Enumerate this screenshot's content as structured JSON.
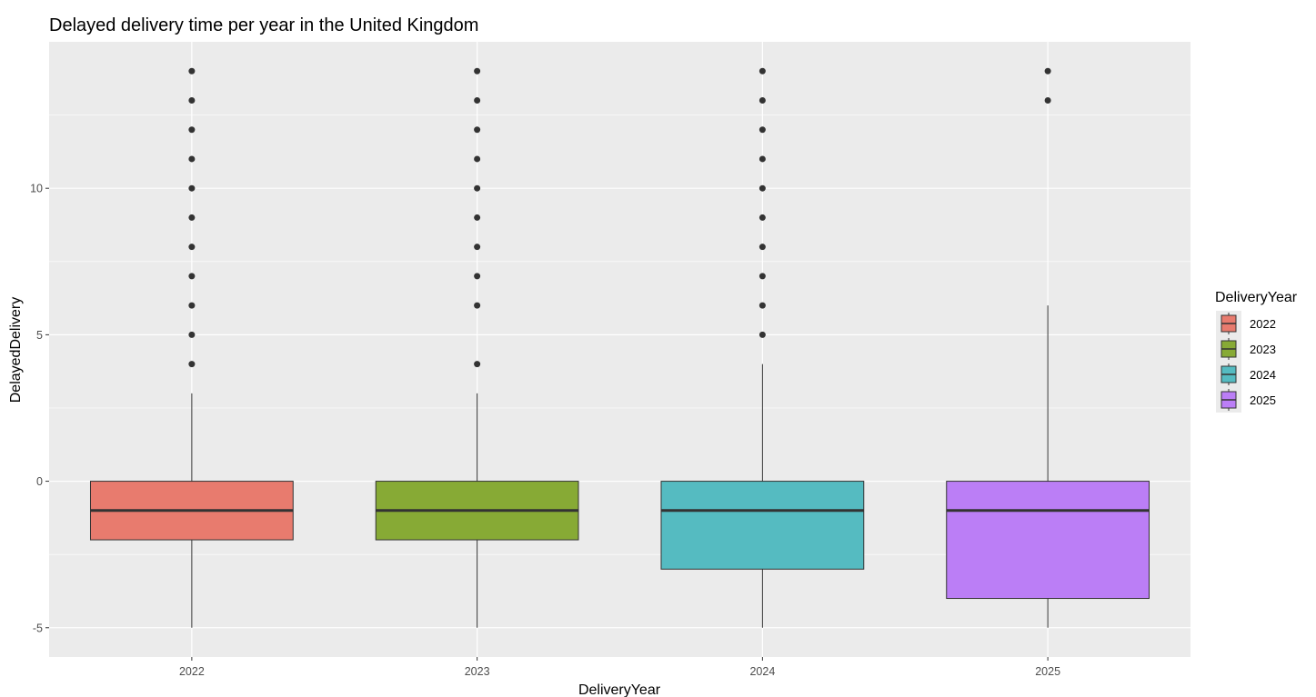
{
  "chart_data": {
    "type": "box",
    "title": "Delayed delivery time per year in the United Kingdom",
    "xlabel": "DeliveryYear",
    "ylabel": "DelayedDelivery",
    "ylim": [
      -6,
      15
    ],
    "y_ticks": [
      -5,
      0,
      5,
      10
    ],
    "y_tick_labels": [
      "-5",
      "0",
      "5",
      "10"
    ],
    "grid": true,
    "legend": {
      "title": "DeliveryYear",
      "position": "right",
      "entries": [
        "2022",
        "2023",
        "2024",
        "2025"
      ]
    },
    "categories": [
      "2022",
      "2023",
      "2024",
      "2025"
    ],
    "colors": [
      "#e87b6e",
      "#87aa35",
      "#55bbc1",
      "#bb7ef6"
    ],
    "boxes": [
      {
        "category": "2022",
        "whisker_low": -5,
        "q1": -2,
        "median": -1,
        "q3": 0,
        "whisker_high": 3,
        "outliers": [
          4,
          5,
          6,
          7,
          8,
          9,
          10,
          11,
          12,
          13,
          14
        ]
      },
      {
        "category": "2023",
        "whisker_low": -5,
        "q1": -2,
        "median": -1,
        "q3": 0,
        "whisker_high": 3,
        "outliers": [
          4,
          6,
          7,
          8,
          9,
          10,
          11,
          12,
          13,
          14
        ]
      },
      {
        "category": "2024",
        "whisker_low": -5,
        "q1": -3,
        "median": -1,
        "q3": 0,
        "whisker_high": 4,
        "outliers": [
          5,
          6,
          7,
          8,
          9,
          10,
          11,
          12,
          13,
          14
        ]
      },
      {
        "category": "2025",
        "whisker_low": -5,
        "q1": -4,
        "median": -1,
        "q3": 0,
        "whisker_high": 6,
        "outliers": [
          13,
          14
        ]
      }
    ]
  }
}
